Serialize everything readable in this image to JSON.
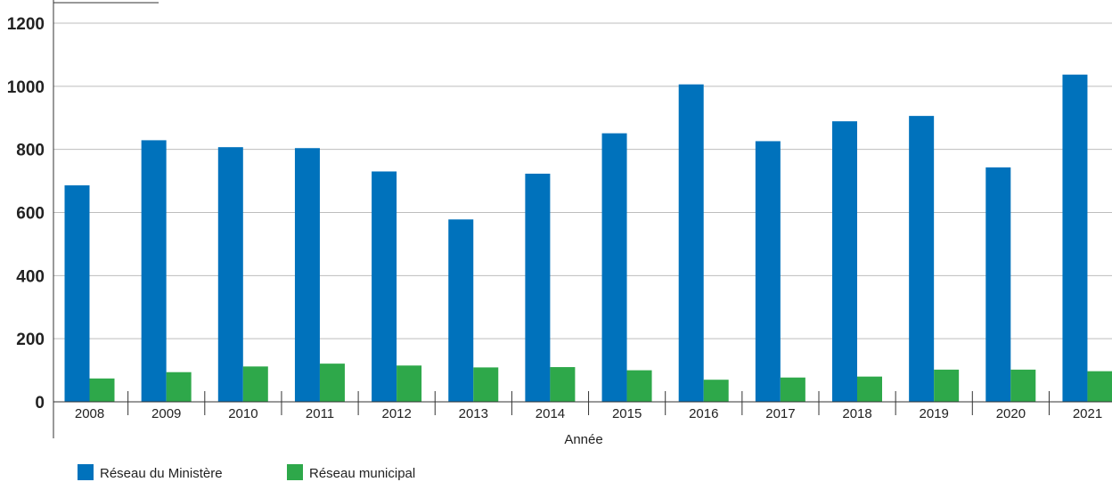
{
  "chart_data": {
    "type": "bar",
    "categories": [
      "2008",
      "2009",
      "2010",
      "2011",
      "2012",
      "2013",
      "2014",
      "2015",
      "2016",
      "2017",
      "2018",
      "2019",
      "2020",
      "2021"
    ],
    "series": [
      {
        "name": "Réseau du Ministère",
        "color": "#0072bc",
        "values": [
          686,
          829,
          807,
          804,
          730,
          578,
          723,
          851,
          1006,
          826,
          889,
          906,
          743,
          1037
        ]
      },
      {
        "name": "Réseau municipal",
        "color": "#2ea84a",
        "values": [
          74,
          94,
          112,
          121,
          115,
          109,
          110,
          100,
          70,
          77,
          80,
          102,
          102,
          97
        ]
      }
    ],
    "title": "",
    "xlabel": "Année",
    "ylabel": "",
    "ylim": [
      0,
      1200
    ],
    "yticks": [
      "0",
      "200",
      "400",
      "600",
      "800",
      "1000",
      "1200"
    ],
    "grid": true,
    "legend_position": "bottom-left"
  }
}
